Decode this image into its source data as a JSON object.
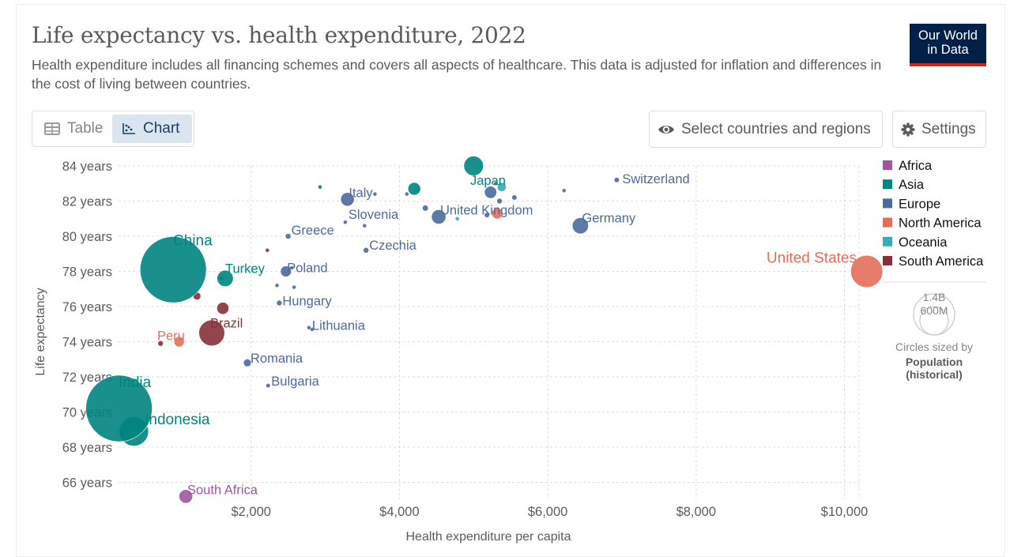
{
  "header": {
    "title": "Life expectancy vs. health expenditure, 2022",
    "subtitle": "Health expenditure includes all financing schemes and covers all aspects of healthcare. This data is adjusted for inflation and differences in the cost of living between countries.",
    "logo_line1": "Our World",
    "logo_line2": "in Data"
  },
  "controls": {
    "tab_table": "Table",
    "tab_chart": "Chart",
    "active_tab": "Chart",
    "select_label": "Select countries and regions",
    "settings_label": "Settings"
  },
  "colors": {
    "Africa": "#a2559c",
    "Asia": "#00847e",
    "Europe": "#4c6a9c",
    "North America": "#e56e5a",
    "Oceania": "#38aaba",
    "South America": "#883039"
  },
  "size_legend": {
    "max_label": "1.4B",
    "mid_label": "600M",
    "caption": "Circles sized by",
    "variable_line1": "Population",
    "variable_line2": "(historical)"
  },
  "chart_data": {
    "type": "scatter",
    "title": "Life expectancy vs. health expenditure, 2022",
    "xlabel": "Health expenditure per capita",
    "ylabel": "Life expectancy",
    "xlim": [
      0,
      10300
    ],
    "ylim": [
      65,
      84
    ],
    "x_ticks": [
      2000,
      4000,
      6000,
      8000,
      10000
    ],
    "x_tick_labels": [
      "$2,000",
      "$4,000",
      "$6,000",
      "$8,000",
      "$10,000"
    ],
    "y_ticks": [
      66,
      68,
      70,
      72,
      74,
      76,
      78,
      80,
      82,
      84
    ],
    "y_tick_labels": [
      "66 years",
      "68 years",
      "70 years",
      "72 years",
      "74 years",
      "76 years",
      "78 years",
      "80 years",
      "82 years",
      "84 years"
    ],
    "grid": true,
    "legend": [
      "Africa",
      "Asia",
      "Europe",
      "North America",
      "Oceania",
      "South America"
    ],
    "legend_position": "right",
    "points": [
      {
        "label": "China",
        "region": "Asia",
        "x": 950,
        "y": 78.1,
        "pop": 1410
      },
      {
        "label": "India",
        "region": "Asia",
        "x": 220,
        "y": 70.2,
        "pop": 1420
      },
      {
        "label": "Indonesia",
        "region": "Asia",
        "x": 420,
        "y": 68.9,
        "pop": 276
      },
      {
        "label": "Japan",
        "region": "Asia",
        "x": 5000,
        "y": 84.0,
        "pop": 124
      },
      {
        "label": "Turkey",
        "region": "Asia",
        "x": 1650,
        "y": 77.6,
        "pop": 85
      },
      {
        "label": "United States",
        "region": "North America",
        "x": 10300,
        "y": 78.0,
        "pop": 333
      },
      {
        "label": "Brazil",
        "region": "South America",
        "x": 1470,
        "y": 74.5,
        "pop": 215
      },
      {
        "label": "Peru",
        "region": "North America",
        "x": 1030,
        "y": 74.0,
        "pop": 34
      },
      {
        "label": "South Africa",
        "region": "Africa",
        "x": 1120,
        "y": 65.2,
        "pop": 60
      },
      {
        "label": "Switzerland",
        "region": "Europe",
        "x": 6930,
        "y": 83.2,
        "pop": 8.8
      },
      {
        "label": "Germany",
        "region": "Europe",
        "x": 6440,
        "y": 80.6,
        "pop": 83
      },
      {
        "label": "United Kingdom",
        "region": "Europe",
        "x": 4530,
        "y": 81.1,
        "pop": 67
      },
      {
        "label": "Italy",
        "region": "Europe",
        "x": 3300,
        "y": 82.1,
        "pop": 59
      },
      {
        "label": "Slovenia",
        "region": "Europe",
        "x": 3270,
        "y": 80.8,
        "pop": 2.1
      },
      {
        "label": "Greece",
        "region": "Europe",
        "x": 2500,
        "y": 80.0,
        "pop": 10.4
      },
      {
        "label": "Czechia",
        "region": "Europe",
        "x": 3550,
        "y": 79.2,
        "pop": 10.5
      },
      {
        "label": "Poland",
        "region": "Europe",
        "x": 2470,
        "y": 78.0,
        "pop": 38
      },
      {
        "label": "Hungary",
        "region": "Europe",
        "x": 2380,
        "y": 76.2,
        "pop": 9.7
      },
      {
        "label": "Lithuania",
        "region": "Europe",
        "x": 2780,
        "y": 74.8,
        "pop": 2.8
      },
      {
        "label": "Romania",
        "region": "Europe",
        "x": 1950,
        "y": 72.8,
        "pop": 19
      },
      {
        "label": "Bulgaria",
        "region": "Europe",
        "x": 2230,
        "y": 71.5,
        "pop": 6.5
      },
      {
        "label": "",
        "region": "Asia",
        "x": 2930,
        "y": 82.8,
        "pop": 5.6
      },
      {
        "label": "",
        "region": "Asia",
        "x": 4200,
        "y": 82.7,
        "pop": 52
      },
      {
        "label": "",
        "region": "Asia",
        "x": 1600,
        "y": 77.6,
        "pop": 2
      },
      {
        "label": "",
        "region": "Europe",
        "x": 5230,
        "y": 82.5,
        "pop": 48
      },
      {
        "label": "",
        "region": "Europe",
        "x": 5300,
        "y": 83.0,
        "pop": 4
      },
      {
        "label": "",
        "region": "Europe",
        "x": 5350,
        "y": 82.0,
        "pop": 10
      },
      {
        "label": "",
        "region": "Europe",
        "x": 5550,
        "y": 82.2,
        "pop": 9
      },
      {
        "label": "",
        "region": "Europe",
        "x": 6220,
        "y": 82.6,
        "pop": 5.5
      },
      {
        "label": "",
        "region": "Europe",
        "x": 4100,
        "y": 82.4,
        "pop": 5.5
      },
      {
        "label": "",
        "region": "Europe",
        "x": 4350,
        "y": 81.6,
        "pop": 11.5
      },
      {
        "label": "",
        "region": "Europe",
        "x": 3670,
        "y": 82.4,
        "pop": 5
      },
      {
        "label": "",
        "region": "Europe",
        "x": 3530,
        "y": 80.6,
        "pop": 1.4
      },
      {
        "label": "",
        "region": "Europe",
        "x": 5180,
        "y": 81.2,
        "pop": 9
      },
      {
        "label": "",
        "region": "Europe",
        "x": 2550,
        "y": 78.2,
        "pop": 2
      },
      {
        "label": "",
        "region": "Europe",
        "x": 2350,
        "y": 77.2,
        "pop": 5.4
      },
      {
        "label": "",
        "region": "Europe",
        "x": 2580,
        "y": 77.1,
        "pop": 3.9
      },
      {
        "label": "",
        "region": "Europe",
        "x": 2820,
        "y": 74.7,
        "pop": 1.9
      },
      {
        "label": "",
        "region": "Oceania",
        "x": 5380,
        "y": 82.8,
        "pop": 26
      },
      {
        "label": "",
        "region": "Oceania",
        "x": 4780,
        "y": 81.0,
        "pop": 5.1
      },
      {
        "label": "",
        "region": "North America",
        "x": 5320,
        "y": 81.3,
        "pop": 38
      },
      {
        "label": "",
        "region": "South America",
        "x": 2220,
        "y": 79.2,
        "pop": 3.4
      },
      {
        "label": "",
        "region": "South America",
        "x": 1270,
        "y": 76.6,
        "pop": 19.6
      },
      {
        "label": "",
        "region": "South America",
        "x": 1620,
        "y": 75.9,
        "pop": 46
      },
      {
        "label": "",
        "region": "South America",
        "x": 780,
        "y": 73.9,
        "pop": 10
      }
    ]
  }
}
